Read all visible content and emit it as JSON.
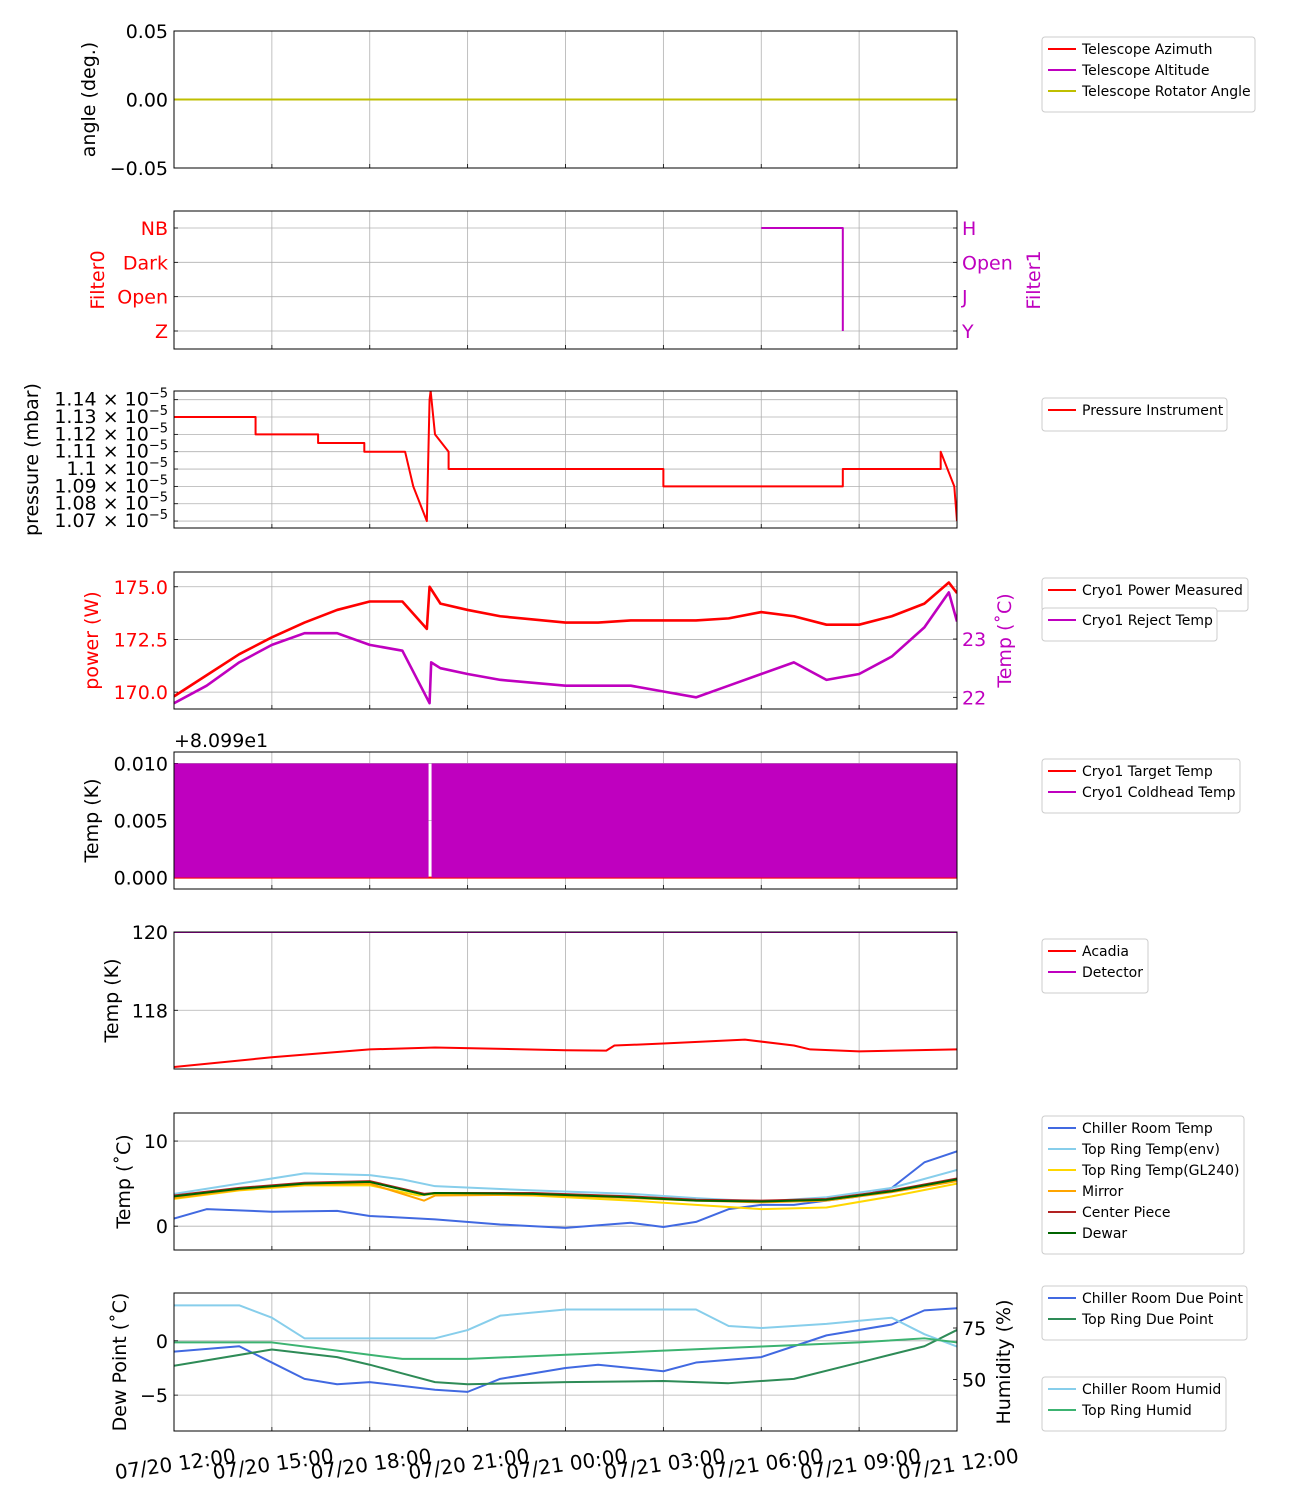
{
  "x_axis": {
    "start": "07/20 12:00",
    "end": "07/21 12:00",
    "tick_labels": [
      "07/20 12:00",
      "07/20 15:00",
      "07/20 18:00",
      "07/20 21:00",
      "07/21 00:00",
      "07/21 03:00",
      "07/21 06:00",
      "07/21 09:00",
      "07/21 12:00"
    ]
  },
  "chart_data": [
    {
      "id": "angle",
      "type": "line",
      "ylabel": "angle (deg.)",
      "ylim": [
        -0.05,
        0.05
      ],
      "yticks": [
        "0.05",
        "0.00",
        "−0.05"
      ],
      "ytick_values": [
        0.05,
        0.0,
        -0.05
      ],
      "grid": true,
      "legend": "right",
      "series": [
        {
          "name": "Telescope Azimuth",
          "color": "#ff0000",
          "x": [
            "07/20 12:00",
            "07/21 12:00"
          ],
          "y": [
            0,
            0
          ]
        },
        {
          "name": "Telescope Altitude",
          "color": "#bf00bf",
          "x": [
            "07/20 12:00",
            "07/21 12:00"
          ],
          "y": [
            0,
            0
          ]
        },
        {
          "name": "Telescope Rotator Angle",
          "color": "#bfbf00",
          "x": [
            "07/20 12:00",
            "07/21 12:00"
          ],
          "y": [
            0,
            0
          ]
        }
      ]
    },
    {
      "id": "filter",
      "type": "line",
      "ylabel": "Filter0",
      "ylabel_color": "#ff0000",
      "yticks": [
        "NB",
        "Dark",
        "Open",
        "Z"
      ],
      "y2label": "Filter1",
      "y2label_color": "#bf00bf",
      "y2ticks": [
        "H",
        "Open",
        "J",
        "Y"
      ],
      "grid": true,
      "series": [
        {
          "axis": "right",
          "color": "#bf00bf",
          "x": [
            "07/21 06:00",
            "07/21 08:30",
            "07/21 08:30"
          ],
          "y": [
            "H",
            "H",
            "Y"
          ]
        }
      ]
    },
    {
      "id": "pressure",
      "type": "line",
      "ylabel": "pressure (mbar)",
      "ytick_mantissas": [
        "1.14",
        "1.13",
        "1.12",
        "1.11",
        "1.1",
        "1.09",
        "1.08",
        "1.07"
      ],
      "ytick_exponent": "−5",
      "ytick_values": [
        1.14e-05,
        1.13e-05,
        1.12e-05,
        1.11e-05,
        1.1e-05,
        1.09e-05,
        1.08e-05,
        1.07e-05
      ],
      "ylim": [
        1.066e-05,
        1.145e-05
      ],
      "grid": true,
      "series": [
        {
          "name": "Pressure Instrument",
          "color": "#ff0000",
          "x": [
            "07/20 12:00",
            "07/20 14:30",
            "07/20 14:30",
            "07/20 16:25",
            "07/20 16:25",
            "07/20 17:50",
            "07/20 17:50",
            "07/20 19:05",
            "07/20 19:20",
            "07/20 19:45",
            "07/20 19:50",
            "07/20 19:52",
            "07/20 20:00",
            "07/20 20:25",
            "07/20 20:25",
            "07/21 03:00",
            "07/21 03:00",
            "07/21 08:30",
            "07/21 08:30",
            "07/21 11:30",
            "07/21 11:30",
            "07/21 11:55",
            "07/21 12:00"
          ],
          "y": [
            1.13e-05,
            1.13e-05,
            1.12e-05,
            1.12e-05,
            1.115e-05,
            1.115e-05,
            1.11e-05,
            1.11e-05,
            1.09e-05,
            1.07e-05,
            1.14e-05,
            1.145e-05,
            1.12e-05,
            1.11e-05,
            1.1e-05,
            1.1e-05,
            1.09e-05,
            1.09e-05,
            1.1e-05,
            1.1e-05,
            1.11e-05,
            1.09e-05,
            1.07e-05
          ]
        }
      ]
    },
    {
      "id": "cryo_power",
      "type": "line",
      "ylabel": "power (W)",
      "ylabel_color": "#ff0000",
      "yticks": [
        "175.0",
        "172.5",
        "170.0"
      ],
      "ytick_values": [
        175.0,
        172.5,
        170.0
      ],
      "ylim": [
        169.2,
        175.7
      ],
      "y2label": "Temp (˚C)",
      "y2label_color": "#bf00bf",
      "y2ticks": [
        "23",
        "22"
      ],
      "y2tick_values": [
        23,
        22
      ],
      "y2lim": [
        21.8,
        24.15
      ],
      "grid": true,
      "series": [
        {
          "name": "Cryo1 Power Measured",
          "color": "#ff0000",
          "axis": "left",
          "x": [
            "07/20 12:00",
            "07/20 13:00",
            "07/20 14:00",
            "07/20 15:00",
            "07/20 16:00",
            "07/20 17:00",
            "07/20 18:00",
            "07/20 19:00",
            "07/20 19:45",
            "07/20 19:50",
            "07/20 20:10",
            "07/20 21:00",
            "07/20 22:00",
            "07/21 00:00",
            "07/21 01:00",
            "07/21 02:00",
            "07/21 03:00",
            "07/21 04:00",
            "07/21 05:00",
            "07/21 06:00",
            "07/21 07:00",
            "07/21 08:00",
            "07/21 09:00",
            "07/21 10:00",
            "07/21 11:00",
            "07/21 11:45",
            "07/21 12:00"
          ],
          "y": [
            169.8,
            170.8,
            171.8,
            172.6,
            173.3,
            173.9,
            174.3,
            174.3,
            173.0,
            175.0,
            174.2,
            173.9,
            173.6,
            173.3,
            173.3,
            173.4,
            173.4,
            173.4,
            173.5,
            173.8,
            173.6,
            173.2,
            173.2,
            173.6,
            174.2,
            175.2,
            174.7
          ]
        },
        {
          "name": "Cryo1 Reject Temp",
          "color": "#bf00bf",
          "axis": "right",
          "x": [
            "07/20 12:00",
            "07/20 13:00",
            "07/20 14:00",
            "07/20 15:00",
            "07/20 16:00",
            "07/20 17:00",
            "07/20 18:00",
            "07/20 19:00",
            "07/20 19:50",
            "07/20 19:53",
            "07/20 20:10",
            "07/20 21:00",
            "07/20 22:00",
            "07/21 00:00",
            "07/21 01:00",
            "07/21 02:00",
            "07/21 03:00",
            "07/21 04:00",
            "07/21 05:00",
            "07/21 06:00",
            "07/21 07:00",
            "07/21 08:00",
            "07/21 09:00",
            "07/21 10:00",
            "07/21 11:00",
            "07/21 11:45",
            "07/21 12:00"
          ],
          "y": [
            21.9,
            22.2,
            22.6,
            22.9,
            23.1,
            23.1,
            22.9,
            22.8,
            21.9,
            22.6,
            22.5,
            22.4,
            22.3,
            22.2,
            22.2,
            22.2,
            22.1,
            22.0,
            22.2,
            22.4,
            22.6,
            22.3,
            22.4,
            22.7,
            23.2,
            23.8,
            23.3
          ]
        }
      ]
    },
    {
      "id": "cryo_target",
      "type": "line",
      "ylabel": "Temp (K)",
      "offset_label": "+8.099e1",
      "yticks": [
        "0.010",
        "0.005",
        "0.000"
      ],
      "ytick_values": [
        0.01,
        0.005,
        0.0
      ],
      "ylim": [
        -0.001,
        0.011
      ],
      "grid": true,
      "series": [
        {
          "name": "Cryo1 Target Temp",
          "color": "#ff0000",
          "x": [
            "07/20 12:00",
            "07/21 12:00"
          ],
          "y": [
            0.0,
            0.0
          ]
        },
        {
          "name": "Cryo1 Coldhead Temp",
          "color": "#bf00bf",
          "x": [
            "07/20 12:00",
            "07/21 12:00"
          ],
          "y_band": [
            0.0,
            0.01
          ],
          "gap_at": "07/20 19:50"
        }
      ]
    },
    {
      "id": "detector",
      "type": "line",
      "ylabel": "Temp (K)",
      "yticks": [
        "120",
        "118"
      ],
      "ytick_values": [
        120,
        118
      ],
      "ylim": [
        116.5,
        120
      ],
      "grid": true,
      "series": [
        {
          "name": "Acadia",
          "color": "#ff0000",
          "x": [
            "07/20 12:00",
            "07/20 15:00",
            "07/20 18:00",
            "07/20 20:00",
            "07/21 00:00",
            "07/21 01:15",
            "07/21 01:30",
            "07/21 03:00",
            "07/21 05:30",
            "07/21 07:00",
            "07/21 07:30",
            "07/21 09:00",
            "07/21 12:00"
          ],
          "y": [
            116.55,
            116.8,
            117.0,
            117.05,
            116.98,
            116.97,
            117.1,
            117.15,
            117.25,
            117.1,
            117.0,
            116.95,
            117.0
          ]
        },
        {
          "name": "Detector",
          "color": "#bf00bf",
          "x": [
            "07/20 12:00",
            "07/21 12:00"
          ],
          "y": [
            120,
            120
          ]
        }
      ]
    },
    {
      "id": "env_temp",
      "type": "line",
      "ylabel": "Temp (˚C)",
      "yticks": [
        "10",
        "0"
      ],
      "ytick_values": [
        10,
        0
      ],
      "ylim": [
        -2.8,
        13.3
      ],
      "grid": true,
      "series": [
        {
          "name": "Chiller Room Temp",
          "color": "#4169e1",
          "x": [
            "07/20 12:00",
            "07/20 13:00",
            "07/20 15:00",
            "07/20 17:00",
            "07/20 18:00",
            "07/20 20:00",
            "07/20 22:00",
            "07/21 00:00",
            "07/21 02:00",
            "07/21 03:00",
            "07/21 04:00",
            "07/21 05:00",
            "07/21 06:00",
            "07/21 07:00",
            "07/21 08:00",
            "07/21 09:00",
            "07/21 10:00",
            "07/21 11:00",
            "07/21 12:00"
          ],
          "y": [
            0.9,
            2.0,
            1.7,
            1.8,
            1.2,
            0.8,
            0.2,
            -0.2,
            0.4,
            -0.1,
            0.5,
            2.0,
            2.5,
            2.5,
            3.0,
            3.5,
            4.5,
            7.5,
            8.8
          ]
        },
        {
          "name": "Top Ring Temp(env)",
          "color": "#87ceeb",
          "x": [
            "07/20 12:00",
            "07/20 14:00",
            "07/20 16:00",
            "07/20 18:00",
            "07/20 19:00",
            "07/20 20:00",
            "07/20 23:00",
            "07/21 02:00",
            "07/21 04:00",
            "07/21 06:00",
            "07/21 08:00",
            "07/21 10:00",
            "07/21 12:00"
          ],
          "y": [
            3.8,
            5.0,
            6.2,
            6.0,
            5.5,
            4.7,
            4.2,
            3.8,
            3.3,
            2.9,
            3.4,
            4.5,
            6.6
          ]
        },
        {
          "name": "Top Ring Temp(GL240)",
          "color": "#ffd700",
          "x": [
            "07/20 12:00",
            "07/20 14:00",
            "07/20 16:00",
            "07/20 18:00",
            "07/20 19:30",
            "07/20 20:00",
            "07/20 23:00",
            "07/21 02:00",
            "07/21 04:00",
            "07/21 06:00",
            "07/21 08:00",
            "07/21 10:00",
            "07/21 12:00"
          ],
          "y": [
            3.2,
            4.2,
            4.8,
            4.8,
            3.6,
            3.8,
            3.6,
            3.0,
            2.5,
            2.0,
            2.2,
            3.5,
            5.0
          ]
        },
        {
          "name": "Mirror",
          "color": "#ffa500",
          "x": [
            "07/20 12:00",
            "07/20 14:00",
            "07/20 16:00",
            "07/20 18:00",
            "07/20 19:40",
            "07/20 20:00",
            "07/20 23:00",
            "07/21 02:00",
            "07/21 04:00",
            "07/21 06:00",
            "07/21 08:00",
            "07/21 10:00",
            "07/21 12:00"
          ],
          "y": [
            3.3,
            4.3,
            4.9,
            5.0,
            3.0,
            3.6,
            3.7,
            3.3,
            3.0,
            2.8,
            3.0,
            4.0,
            5.3
          ]
        },
        {
          "name": "Center Piece",
          "color": "#b22222",
          "x": [
            "07/20 12:00",
            "07/20 14:00",
            "07/20 16:00",
            "07/20 18:00",
            "07/20 19:40",
            "07/20 20:00",
            "07/20 23:00",
            "07/21 02:00",
            "07/21 04:00",
            "07/21 06:00",
            "07/21 08:00",
            "07/21 10:00",
            "07/21 12:00"
          ],
          "y": [
            3.6,
            4.5,
            5.1,
            5.3,
            3.8,
            3.9,
            3.9,
            3.5,
            3.1,
            3.0,
            3.2,
            4.2,
            5.6
          ]
        },
        {
          "name": "Dewar",
          "color": "#006400",
          "x": [
            "07/20 12:00",
            "07/20 14:00",
            "07/20 16:00",
            "07/20 18:00",
            "07/20 19:40",
            "07/20 20:00",
            "07/20 23:00",
            "07/21 02:00",
            "07/21 04:00",
            "07/21 06:00",
            "07/21 08:00",
            "07/21 10:00",
            "07/21 12:00"
          ],
          "y": [
            3.5,
            4.4,
            5.0,
            5.2,
            3.7,
            3.9,
            3.8,
            3.4,
            3.0,
            2.9,
            3.1,
            4.1,
            5.5
          ]
        }
      ]
    },
    {
      "id": "dew",
      "type": "line",
      "ylabel": "Dew Point (˚C)",
      "yticks": [
        "0",
        "−5"
      ],
      "ytick_values": [
        0,
        -5
      ],
      "ylim": [
        -8.3,
        4.4
      ],
      "y2label": "Humidity (%)",
      "y2ticks": [
        "75",
        "50"
      ],
      "y2tick_values": [
        75,
        50
      ],
      "y2lim": [
        25,
        92
      ],
      "grid": true,
      "series": [
        {
          "name": "Chiller Room Due Point",
          "color": "#4169e1",
          "axis": "left",
          "x": [
            "07/20 12:00",
            "07/20 14:00",
            "07/20 15:00",
            "07/20 16:00",
            "07/20 17:00",
            "07/20 18:00",
            "07/20 20:00",
            "07/20 21:00",
            "07/20 22:00",
            "07/21 00:00",
            "07/21 01:00",
            "07/21 03:00",
            "07/21 04:00",
            "07/21 06:00",
            "07/21 07:00",
            "07/21 08:00",
            "07/21 10:00",
            "07/21 11:00",
            "07/21 12:00"
          ],
          "y": [
            -1.0,
            -0.5,
            -2.0,
            -3.5,
            -4.0,
            -3.8,
            -4.5,
            -4.7,
            -3.5,
            -2.5,
            -2.2,
            -2.8,
            -2.0,
            -1.5,
            -0.5,
            0.5,
            1.5,
            2.8,
            3.0
          ]
        },
        {
          "name": "Top Ring Due Point",
          "color": "#2e8b57",
          "axis": "left",
          "x": [
            "07/20 12:00",
            "07/20 15:00",
            "07/20 17:00",
            "07/20 18:00",
            "07/20 19:00",
            "07/20 20:00",
            "07/20 21:00",
            "07/21 00:00",
            "07/21 03:00",
            "07/21 05:00",
            "07/21 07:00",
            "07/21 09:00",
            "07/21 11:00",
            "07/21 12:00"
          ],
          "y": [
            -2.3,
            -0.8,
            -1.5,
            -2.2,
            -3.0,
            -3.8,
            -4.0,
            -3.8,
            -3.7,
            -3.9,
            -3.5,
            -2.0,
            -0.5,
            1.0
          ]
        },
        {
          "name": "Chiller Room Humid",
          "color": "#87ceeb",
          "axis": "right",
          "x": [
            "07/20 12:00",
            "07/20 14:00",
            "07/20 15:00",
            "07/20 16:00",
            "07/20 18:00",
            "07/20 20:00",
            "07/20 21:00",
            "07/20 22:00",
            "07/21 00:00",
            "07/21 02:00",
            "07/21 04:00",
            "07/21 05:00",
            "07/21 06:00",
            "07/21 08:00",
            "07/21 10:00",
            "07/21 11:00",
            "07/21 12:00"
          ],
          "y": [
            86,
            86,
            80,
            70,
            70,
            70,
            74,
            81,
            84,
            84,
            84,
            76,
            75,
            77,
            80,
            72,
            66
          ]
        },
        {
          "name": "Top Ring Humid",
          "color": "#3cb371",
          "axis": "right",
          "x": [
            "07/20 12:00",
            "07/20 15:00",
            "07/20 17:00",
            "07/20 19:00",
            "07/20 21:00",
            "07/21 00:00",
            "07/21 03:00",
            "07/21 06:00",
            "07/21 09:00",
            "07/21 11:00",
            "07/21 12:00"
          ],
          "y": [
            68,
            68,
            64,
            60,
            60,
            62,
            64,
            66,
            68,
            70,
            68
          ]
        }
      ]
    }
  ]
}
